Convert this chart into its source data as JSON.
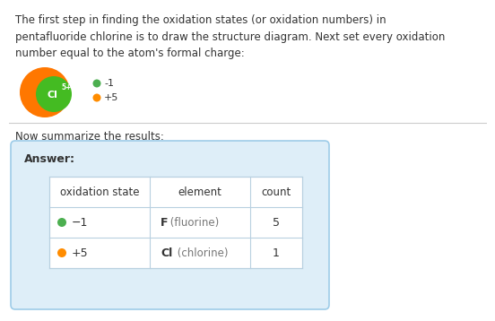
{
  "title_text": "The first step in finding the oxidation states (or oxidation numbers) in\npentafluoride chlorine is to draw the structure diagram. Next set every oxidation\nnumber equal to the atom's formal charge:",
  "summary_label": "Now summarize the results:",
  "answer_label": "Answer:",
  "table_headers": [
    "oxidation state",
    "element",
    "count"
  ],
  "table_rows": [
    {
      "ox_state": "−1",
      "element_bold": "F",
      "element_paren": " (fluorine)",
      "count": "5",
      "dot_color": "#4caf50"
    },
    {
      "ox_state": "+5",
      "element_bold": "Cl",
      "element_paren": " (chlorine)",
      "count": "1",
      "dot_color": "#ff8c00"
    }
  ],
  "legend_items": [
    {
      "label": "-1",
      "color": "#4caf50"
    },
    {
      "label": "+5",
      "color": "#ff8c00"
    }
  ],
  "molecule_orange": "#ff7700",
  "molecule_green": "#44bb22",
  "molecule_label": "Cl",
  "molecule_superscript": "5+",
  "bg_color": "#ffffff",
  "table_bg": "#deeef8",
  "table_border": "#9ecce8",
  "text_color": "#333333",
  "gray_text": "#777777",
  "font_size_body": 8.5,
  "font_size_table_header": 8.5,
  "font_size_table_data": 9.0
}
